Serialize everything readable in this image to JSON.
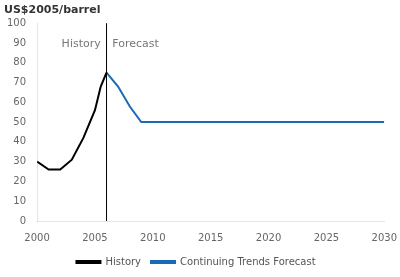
{
  "chart_data": {
    "type": "line",
    "y_label": "US$2005/barrel",
    "series": [
      {
        "name": "History",
        "color": "#000000",
        "x": [
          2000,
          2001,
          2002,
          2003,
          2004,
          2005,
          2005.5,
          2006
        ],
        "values": [
          30,
          26,
          26,
          31,
          42,
          56,
          68,
          75
        ]
      },
      {
        "name": "Continuing Trends Forecast",
        "color": "#1a6ab5",
        "x": [
          2006,
          2007,
          2008,
          2009,
          2010,
          2015,
          2020,
          2025,
          2030
        ],
        "values": [
          75,
          68,
          58,
          50,
          50,
          50,
          50,
          50,
          50
        ]
      }
    ],
    "vlines": [
      2006
    ],
    "annotations": [
      {
        "text": "History",
        "x": 2005.5,
        "y": 92
      },
      {
        "text": "Forecast",
        "x": 2006.5,
        "y": 92
      }
    ],
    "xlim": [
      2000,
      2030
    ],
    "xticks": [
      2000,
      2005,
      2010,
      2015,
      2020,
      2025,
      2030
    ],
    "ylim": [
      0,
      100
    ],
    "yticks": [
      0,
      10,
      20,
      30,
      40,
      50,
      60,
      70,
      80,
      90,
      100
    ],
    "grid": false,
    "legend": "bottom"
  }
}
